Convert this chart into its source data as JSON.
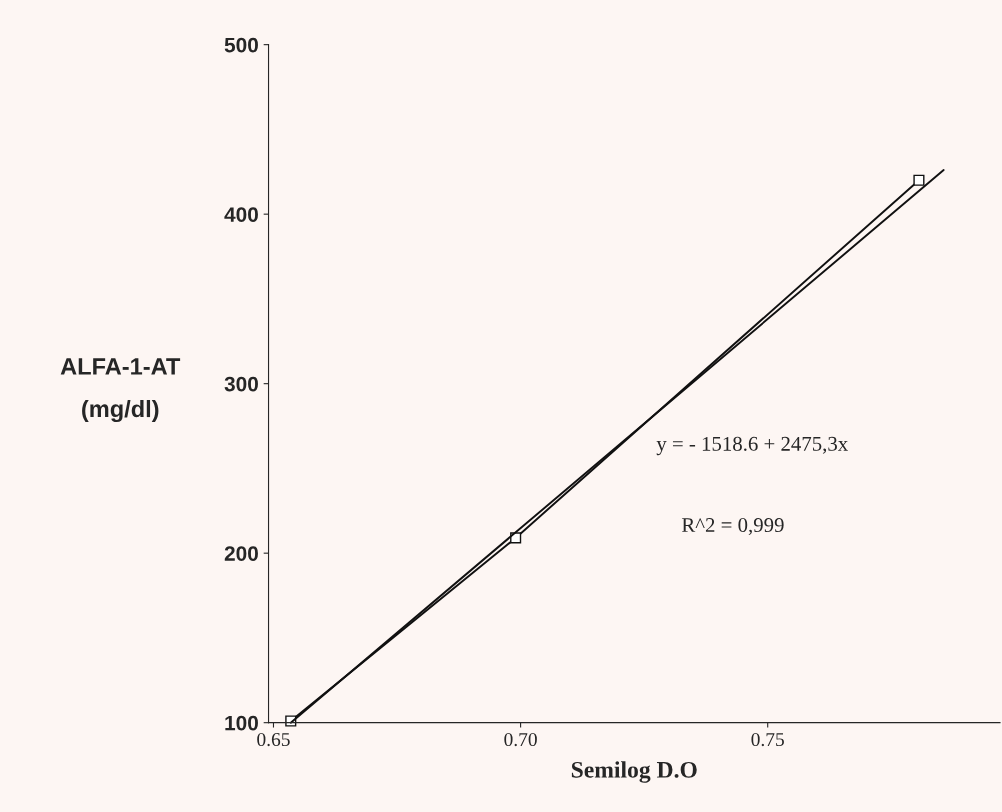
{
  "chart_data": {
    "type": "line",
    "xlabel": "Semilog D.O",
    "ylabel": "ALFA-1-AT\n(mg/dl)",
    "xlim": [
      0.649,
      0.797
    ],
    "ylim": [
      100,
      500
    ],
    "xticks": [
      0.65,
      {
        "value": 0.7,
        "label": "0.70"
      },
      0.75
    ],
    "yticks": [
      100,
      200,
      300,
      400,
      500
    ],
    "series": [
      {
        "color": "#111111",
        "marker": "square",
        "x": [
          0.6535,
          0.699,
          0.7806
        ],
        "values": [
          101,
          209,
          420
        ]
      },
      {
        "color": "#111111",
        "marker": "none",
        "x": [
          0.6535,
          0.7856
        ],
        "values": [
          100,
          426
        ]
      }
    ],
    "annotations": [
      "y = - 1518.6 + 2475,3x",
      "R^2 = 0,999"
    ],
    "grid": false,
    "legend": false
  }
}
